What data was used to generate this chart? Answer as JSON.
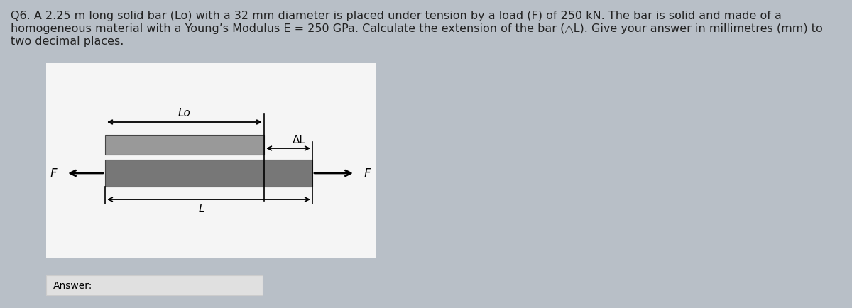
{
  "bg_color": "#b8bfc7",
  "white_box_color": "#f5f5f5",
  "bar_top_color": "#999999",
  "bar_bot_color": "#777777",
  "question_line1": "Q6. A 2.25 m long solid bar (Lo) with a 32 mm diameter is placed under tension by a load (F) of 250 kN. The bar is solid and made of a",
  "question_line2": "homogeneous material with a Young’s Modulus E = 250 GPa. Calculate the extension of the bar (△L). Give your answer in millimetres (mm) to",
  "question_line3": "two decimal places.",
  "answer_label": "Answer:",
  "label_Lo": "Lo",
  "label_DL": "ΔL",
  "label_L": "L",
  "label_F": "F",
  "answer_box_color": "#e0e0e0",
  "text_color": "#222222",
  "font_size_q": 11.5,
  "font_size_label": 11
}
